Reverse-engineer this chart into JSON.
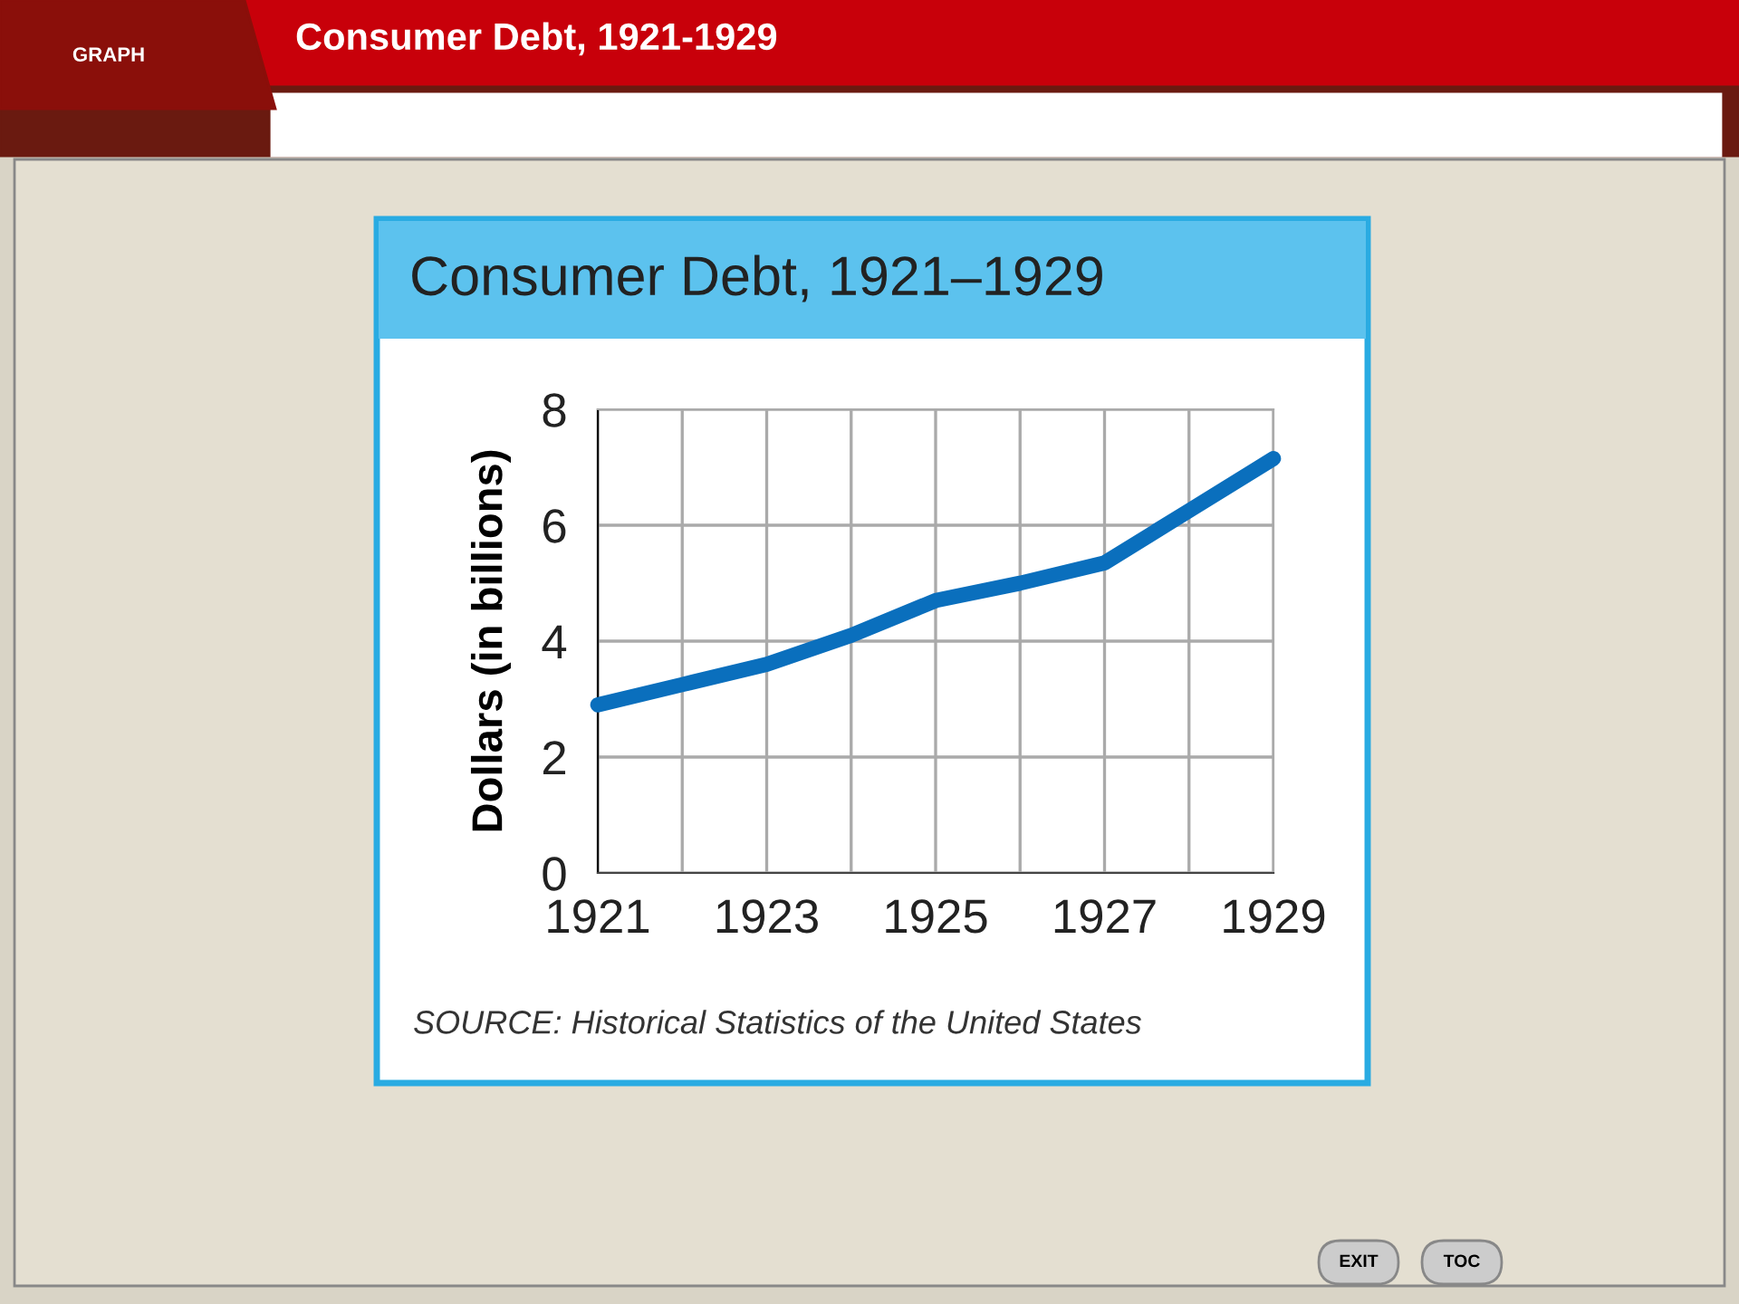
{
  "chart_data": {
    "type": "line",
    "title": "Consumer Debt, 1921-1929",
    "subtitle": "Consumer Debt, 1921–1929",
    "ylabel": "Dollars (in billions)",
    "x": [
      1921,
      1922,
      1923,
      1924,
      1925,
      1926,
      1927,
      1928,
      1929
    ],
    "series": [
      {
        "color": "#0a6fbd",
        "values": [
          2.9,
          3.25,
          3.6,
          4.1,
          4.7,
          5.0,
          5.35,
          6.25,
          7.15
        ]
      }
    ],
    "xlim": [
      1921,
      1929
    ],
    "xticks": [
      1921,
      {
        "value": 1922,
        "label": null
      },
      1923,
      {
        "value": 1924,
        "label": null
      },
      1925,
      {
        "value": 1926,
        "label": null
      },
      1927,
      {
        "value": 1928,
        "label": null
      },
      1929
    ],
    "ylim": [
      0,
      8
    ],
    "yticks": [
      0,
      2,
      4,
      6,
      8
    ],
    "grid": true,
    "legend": false,
    "marker": "none",
    "line_style": "solid",
    "annotations": [
      "GRAPH",
      "SOURCE: Historical Statistics of the United States",
      "EXIT",
      "TOC"
    ]
  }
}
